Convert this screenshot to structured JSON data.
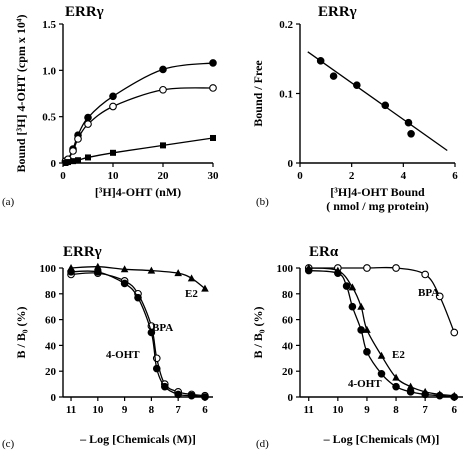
{
  "chart_data": [
    {
      "panel": "(a)",
      "type": "scatter",
      "title": "ERRγ",
      "xlabel": "[³H]4-OHT (nM)",
      "ylabel": "Bound [³H] 4-OHT (cpm x 10⁴)",
      "xlim": [
        0,
        30
      ],
      "ylim": [
        0,
        1.5
      ],
      "xticks": [
        0,
        10,
        20,
        30
      ],
      "yticks": [
        0,
        0.5,
        1.0,
        1.5
      ],
      "ytick_labels": [
        "0",
        "0.5",
        "1.0",
        "1.5"
      ],
      "series": [
        {
          "marker": "filled-circle",
          "x": [
            0.5,
            1,
            2,
            3,
            5,
            10,
            20,
            30
          ],
          "y": [
            0.02,
            0.04,
            0.15,
            0.3,
            0.49,
            0.72,
            1.01,
            1.08
          ]
        },
        {
          "marker": "open-circle",
          "x": [
            0.5,
            1,
            2,
            3,
            5,
            10,
            20,
            30
          ],
          "y": [
            0.02,
            0.04,
            0.13,
            0.26,
            0.42,
            0.61,
            0.79,
            0.81
          ]
        },
        {
          "marker": "filled-square",
          "x": [
            0.5,
            1,
            2,
            3,
            5,
            10,
            20,
            30
          ],
          "y": [
            0.0,
            0.01,
            0.02,
            0.03,
            0.06,
            0.11,
            0.19,
            0.27
          ]
        }
      ]
    },
    {
      "panel": "(b)",
      "type": "scatter",
      "title": "ERRγ",
      "xlabel": "[³H]4-OHT Bound",
      "xlabel2": "( nmol / mg protein)",
      "ylabel": "Bound / Free",
      "xlim": [
        0,
        6
      ],
      "ylim": [
        0,
        0.2
      ],
      "xticks": [
        0,
        2,
        4,
        6
      ],
      "yticks": [
        0,
        0.1,
        0.2
      ],
      "ytick_labels": [
        "0",
        "0.1",
        "0.2"
      ],
      "points": {
        "x": [
          0.8,
          1.3,
          2.2,
          3.3,
          4.2,
          4.3
        ],
        "y": [
          0.147,
          0.125,
          0.112,
          0.083,
          0.058,
          0.042
        ]
      },
      "fit_line": {
        "x": [
          0.3,
          5.7
        ],
        "y": [
          0.16,
          0.018
        ]
      }
    },
    {
      "panel": "(c)",
      "type": "scatter",
      "title": "ERRγ",
      "xlabel": "– Log [Chemicals (M)]",
      "ylabel": "B / B₀ (%)",
      "xlim": [
        11.3,
        5.7
      ],
      "ylim": [
        0,
        100
      ],
      "xticks": [
        11,
        10,
        9,
        8,
        7,
        6
      ],
      "yticks": [
        0,
        20,
        40,
        60,
        80,
        100
      ],
      "series": [
        {
          "name": "E2",
          "marker": "filled-triangle",
          "x": [
            11,
            10,
            9,
            8,
            7,
            6.5,
            6
          ],
          "y": [
            100,
            101,
            99,
            98,
            96,
            92,
            84
          ]
        },
        {
          "name": "BPA",
          "marker": "open-circle",
          "x": [
            11,
            10,
            9,
            8.5,
            8,
            7.8,
            7.5,
            7,
            6.5,
            6
          ],
          "y": [
            95,
            96,
            90,
            80,
            55,
            30,
            10,
            4,
            2,
            1
          ]
        },
        {
          "name": "4-OHT",
          "marker": "filled-circle",
          "x": [
            11,
            10,
            9,
            8.5,
            8,
            7.8,
            7.5,
            7,
            6.5,
            6
          ],
          "y": [
            97,
            97,
            88,
            77,
            50,
            22,
            8,
            2,
            1,
            0
          ]
        }
      ]
    },
    {
      "panel": "(d)",
      "type": "scatter",
      "title": "ERα",
      "xlabel": "– Log [Chemicals (M)]",
      "ylabel": "B / B₀ (%)",
      "xlim": [
        11.3,
        5.7
      ],
      "ylim": [
        0,
        100
      ],
      "xticks": [
        11,
        10,
        9,
        8,
        7,
        6
      ],
      "yticks": [
        0,
        20,
        40,
        60,
        80,
        100
      ],
      "series": [
        {
          "name": "BPA",
          "marker": "open-circle",
          "x": [
            11,
            10,
            9,
            8,
            7,
            6.5,
            6
          ],
          "y": [
            100,
            100,
            100,
            100,
            95,
            78,
            50
          ]
        },
        {
          "name": "E2",
          "marker": "filled-triangle",
          "x": [
            11,
            10,
            9.5,
            9.2,
            9,
            8.5,
            8,
            7.5,
            7,
            6.5,
            6
          ],
          "y": [
            100,
            98,
            85,
            70,
            52,
            32,
            15,
            8,
            4,
            2,
            1
          ]
        },
        {
          "name": "4-OHT",
          "marker": "filled-circle",
          "x": [
            11,
            10,
            9.7,
            9.5,
            9.2,
            9,
            8.5,
            8,
            7.5,
            7,
            6.5,
            6
          ],
          "y": [
            98,
            96,
            86,
            70,
            52,
            35,
            18,
            8,
            4,
            2,
            1,
            0
          ]
        }
      ]
    }
  ]
}
